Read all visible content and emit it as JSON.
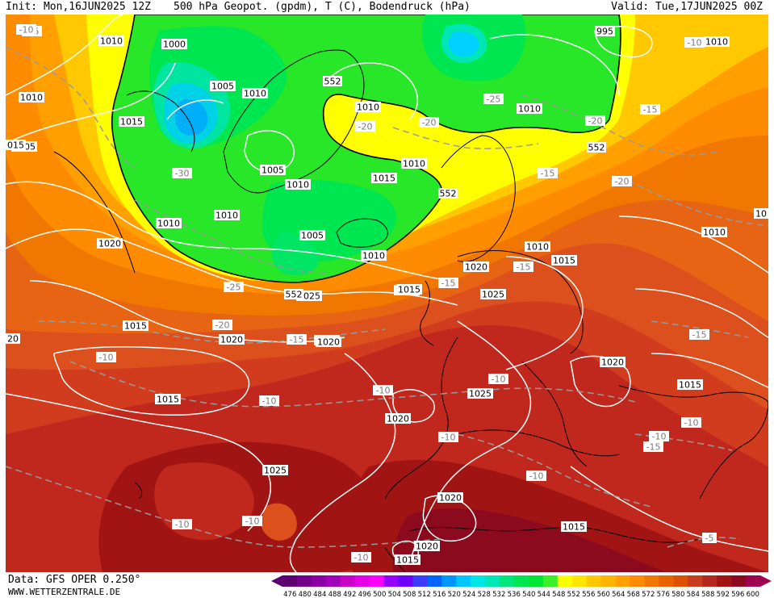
{
  "header": {
    "init": "Init: Mon,16JUN2025 12Z",
    "title": "500 hPa Geopot. (gpdm), T (C), Bodendruck (hPa)",
    "valid": "Valid: Tue,17JUN2025 00Z"
  },
  "footer": {
    "data_source": "Data: GFS OPER 0.250°",
    "website": "WWW.WETTERZENTRALE.DE"
  },
  "legend": {
    "values": [
      "476",
      "480",
      "484",
      "488",
      "492",
      "496",
      "500",
      "504",
      "508",
      "512",
      "516",
      "520",
      "524",
      "528",
      "532",
      "536",
      "540",
      "544",
      "548",
      "552",
      "556",
      "560",
      "564",
      "568",
      "572",
      "576",
      "580",
      "584",
      "588",
      "592",
      "596",
      "600"
    ],
    "colors": [
      "#5c0070",
      "#72008a",
      "#8a00a2",
      "#a000b8",
      "#c800c8",
      "#e600e6",
      "#ff00ff",
      "#9600ff",
      "#6e00ff",
      "#3c3cff",
      "#0064ff",
      "#0096ff",
      "#00c8ff",
      "#00e6e6",
      "#00e6b4",
      "#00e678",
      "#00e650",
      "#00e632",
      "#3cf028",
      "#ffff00",
      "#ffe600",
      "#ffc800",
      "#ffb400",
      "#ffa000",
      "#ff8c00",
      "#f07800",
      "#e66400",
      "#dc5000",
      "#c83c1e",
      "#b4281e",
      "#a01414",
      "#8c0a1e",
      "#a00050"
    ]
  },
  "pressure_labels": [
    "1010",
    "1000",
    "1005",
    "1010",
    "1015",
    "1010",
    "995",
    "1010",
    "1010",
    "1005",
    "1015",
    "1010",
    "1010",
    "1010",
    "1005",
    "1010",
    "1010",
    "1015",
    "1020",
    "1005",
    "1010",
    "1010",
    "1015",
    "1020",
    "1025",
    "1010",
    "1015",
    "1020",
    "1025",
    "1015",
    "1020",
    "1025",
    "1020",
    "1015",
    "1010",
    "1025",
    "1015",
    "1020",
    "1025",
    "1020",
    "1015",
    "1020",
    "1015"
  ],
  "temperature_labels": [
    "-10",
    "-25",
    "-20",
    "-20",
    "-25",
    "-30",
    "-20",
    "-15",
    "-20",
    "-15",
    "-15",
    "-25",
    "-15",
    "-20",
    "-15",
    "-10",
    "-10",
    "-15",
    "-10",
    "-10",
    "-10",
    "-10",
    "-10",
    "-10",
    "-10",
    "-10",
    "-10",
    "-15",
    "-5"
  ],
  "geopotential_labels": [
    "552",
    "552",
    "552",
    "552"
  ],
  "edge_labels": [
    "015",
    "20",
    "10",
    "-10"
  ]
}
